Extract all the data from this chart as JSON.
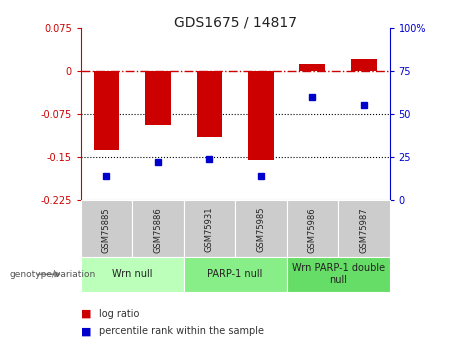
{
  "title": "GDS1675 / 14817",
  "samples": [
    "GSM75885",
    "GSM75886",
    "GSM75931",
    "GSM75985",
    "GSM75986",
    "GSM75987"
  ],
  "log_ratios": [
    -0.138,
    -0.095,
    -0.115,
    -0.155,
    0.012,
    0.02
  ],
  "percentile_ranks": [
    14,
    22,
    24,
    14,
    60,
    55
  ],
  "ylim_left": [
    -0.225,
    0.075
  ],
  "ylim_right": [
    0,
    100
  ],
  "yticks_left": [
    0.075,
    0,
    -0.075,
    -0.15,
    -0.225
  ],
  "yticks_right": [
    100,
    75,
    50,
    25,
    0
  ],
  "bar_color": "#cc0000",
  "dot_color": "#0000cc",
  "hline_color": "#cc0000",
  "grid_color": "#000000",
  "left_label_color": "#cc0000",
  "right_label_color": "#0000cc",
  "legend_log_ratio": "log ratio",
  "legend_percentile": "percentile rank within the sample",
  "genotype_label": "genotype/variation",
  "group_defs": [
    [
      0,
      1,
      "Wrn null",
      "#bbffbb"
    ],
    [
      2,
      3,
      "PARP-1 null",
      "#88ee88"
    ],
    [
      4,
      5,
      "Wrn PARP-1 double\nnull",
      "#66dd66"
    ]
  ],
  "sample_box_color": "#cccccc",
  "bar_width": 0.5,
  "tick_fontsize": 7,
  "sample_fontsize": 6,
  "group_fontsize": 7,
  "title_fontsize": 10
}
